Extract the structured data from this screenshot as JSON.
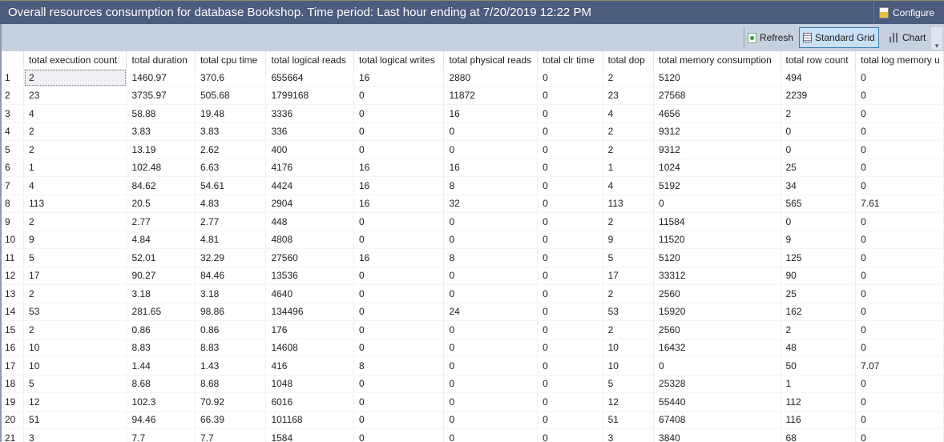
{
  "header": {
    "title": "Overall resources consumption for database Bookshop. Time period: Last hour ending at 7/20/2019 12:22 PM",
    "configure_label": "Configure"
  },
  "toolbar": {
    "refresh_label": "Refresh",
    "standard_grid_label": "Standard Grid",
    "chart_label": "Chart",
    "active_view": "Standard Grid"
  },
  "grid": {
    "columns": [
      "",
      "total execution count",
      "total duration",
      "total cpu time",
      "total logical reads",
      "total logical writes",
      "total physical reads",
      "total clr time",
      "total dop",
      "total memory consumption",
      "total row count",
      "total log memory u"
    ],
    "rows": [
      [
        "1",
        "2",
        "1460.97",
        "370.6",
        "655664",
        "16",
        "2880",
        "0",
        "2",
        "5120",
        "494",
        "0"
      ],
      [
        "2",
        "23",
        "3735.97",
        "505.68",
        "1799168",
        "0",
        "11872",
        "0",
        "23",
        "27568",
        "2239",
        "0"
      ],
      [
        "3",
        "4",
        "58.88",
        "19.48",
        "3336",
        "0",
        "16",
        "0",
        "4",
        "4656",
        "2",
        "0"
      ],
      [
        "4",
        "2",
        "3.83",
        "3.83",
        "336",
        "0",
        "0",
        "0",
        "2",
        "9312",
        "0",
        "0"
      ],
      [
        "5",
        "2",
        "13.19",
        "2.62",
        "400",
        "0",
        "0",
        "0",
        "2",
        "9312",
        "0",
        "0"
      ],
      [
        "6",
        "1",
        "102.48",
        "6.63",
        "4176",
        "16",
        "16",
        "0",
        "1",
        "1024",
        "25",
        "0"
      ],
      [
        "7",
        "4",
        "84.62",
        "54.61",
        "4424",
        "16",
        "8",
        "0",
        "4",
        "5192",
        "34",
        "0"
      ],
      [
        "8",
        "113",
        "20.5",
        "4.83",
        "2904",
        "16",
        "32",
        "0",
        "113",
        "0",
        "565",
        "7.61"
      ],
      [
        "9",
        "2",
        "2.77",
        "2.77",
        "448",
        "0",
        "0",
        "0",
        "2",
        "11584",
        "0",
        "0"
      ],
      [
        "10",
        "9",
        "4.84",
        "4.81",
        "4808",
        "0",
        "0",
        "0",
        "9",
        "11520",
        "9",
        "0"
      ],
      [
        "11",
        "5",
        "52.01",
        "32.29",
        "27560",
        "16",
        "8",
        "0",
        "5",
        "5120",
        "125",
        "0"
      ],
      [
        "12",
        "17",
        "90.27",
        "84.46",
        "13536",
        "0",
        "0",
        "0",
        "17",
        "33312",
        "90",
        "0"
      ],
      [
        "13",
        "2",
        "3.18",
        "3.18",
        "4640",
        "0",
        "0",
        "0",
        "2",
        "2560",
        "25",
        "0"
      ],
      [
        "14",
        "53",
        "281.65",
        "98.86",
        "134496",
        "0",
        "24",
        "0",
        "53",
        "15920",
        "162",
        "0"
      ],
      [
        "15",
        "2",
        "0.86",
        "0.86",
        "176",
        "0",
        "0",
        "0",
        "2",
        "2560",
        "2",
        "0"
      ],
      [
        "16",
        "10",
        "8.83",
        "8.83",
        "14608",
        "0",
        "0",
        "0",
        "10",
        "16432",
        "48",
        "0"
      ],
      [
        "17",
        "10",
        "1.44",
        "1.43",
        "416",
        "8",
        "0",
        "0",
        "10",
        "0",
        "50",
        "7.07"
      ],
      [
        "18",
        "5",
        "8.68",
        "8.68",
        "1048",
        "0",
        "0",
        "0",
        "5",
        "25328",
        "1",
        "0"
      ],
      [
        "19",
        "12",
        "102.3",
        "70.92",
        "6016",
        "0",
        "0",
        "0",
        "12",
        "55440",
        "112",
        "0"
      ],
      [
        "20",
        "51",
        "94.46",
        "66.39",
        "101168",
        "0",
        "0",
        "0",
        "51",
        "67408",
        "116",
        "0"
      ],
      [
        "21",
        "3",
        "7.7",
        "7.7",
        "1584",
        "0",
        "0",
        "0",
        "3",
        "3840",
        "68",
        "0"
      ]
    ]
  }
}
